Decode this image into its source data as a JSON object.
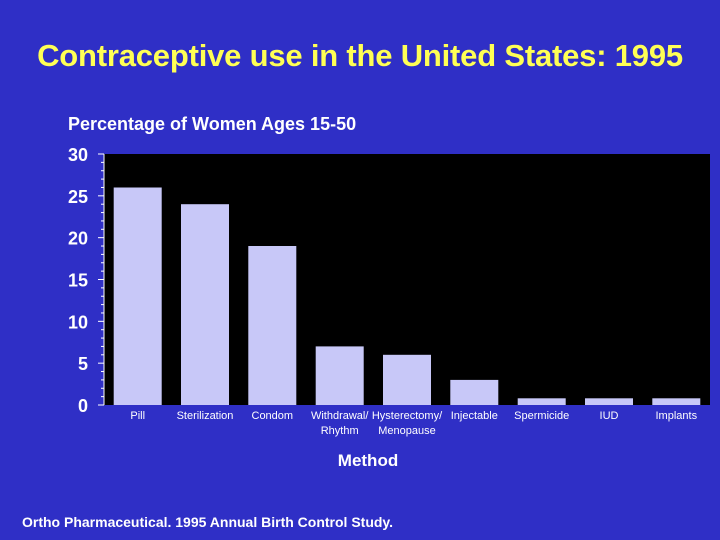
{
  "colors": {
    "background": "#2f2fc6",
    "plot_area": "#000000",
    "bar": "#c8c8f8",
    "title": "#ffff55",
    "text": "#ffffff"
  },
  "source_note": "Ortho Pharmaceutical. 1995 Annual Birth Control Study.",
  "chart_data": {
    "type": "bar",
    "title": "Contraceptive use in the United States: 1995",
    "ylabel": "Percentage of Women Ages 15-50",
    "xlabel": "Method",
    "categories": [
      [
        "Pill"
      ],
      [
        "Sterilization"
      ],
      [
        "Condom"
      ],
      [
        "Withdrawal/",
        "Rhythm"
      ],
      [
        "Hysterectomy/",
        "Menopause"
      ],
      [
        "Injectable"
      ],
      [
        "Spermicide"
      ],
      [
        "IUD"
      ],
      [
        "Implants"
      ]
    ],
    "values": [
      26,
      24,
      19,
      7,
      6,
      3,
      0.8,
      0.8,
      0.8
    ],
    "ylim": [
      0,
      30
    ],
    "yticks": [
      0,
      5,
      10,
      15,
      20,
      25,
      30
    ],
    "grid": false
  }
}
